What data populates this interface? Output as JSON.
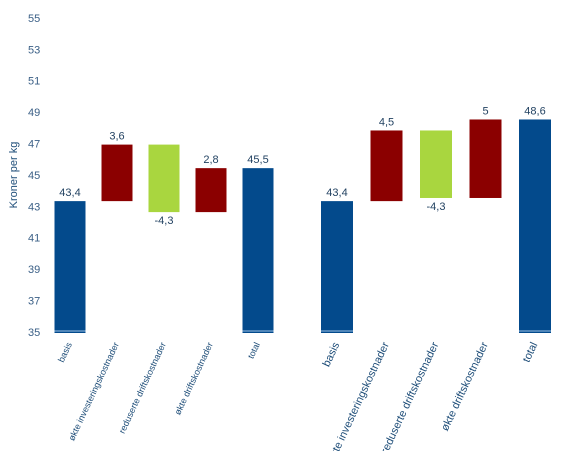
{
  "chart_data": {
    "type": "waterfall",
    "y_label": "Kroner per kg",
    "ylim": [
      35,
      55
    ],
    "yticks": [
      35,
      37,
      39,
      41,
      43,
      45,
      47,
      49,
      51,
      53,
      55
    ],
    "colors": {
      "total": "#034a8c",
      "increase": "#8b0000",
      "decrease": "#a9d63f"
    },
    "groups": [
      {
        "categories": [
          "basis",
          "økte investeringskostnader",
          "reduserte driftskostnader",
          "økte driftskostnader",
          "total"
        ],
        "values": [
          43.4,
          3.6,
          -4.3,
          2.8,
          45.5
        ],
        "value_labels": [
          "43,4",
          "3,6",
          "-4,3",
          "2,8",
          "45,5"
        ]
      },
      {
        "categories": [
          "basis",
          "økte investeringskostnader",
          "reduserte driftskostnader",
          "økte driftskostnader",
          "total"
        ],
        "values": [
          43.4,
          4.5,
          -4.3,
          5,
          48.6
        ],
        "value_labels": [
          "43,4",
          "4,5",
          "-4,3",
          "5",
          "48,6"
        ]
      }
    ]
  }
}
